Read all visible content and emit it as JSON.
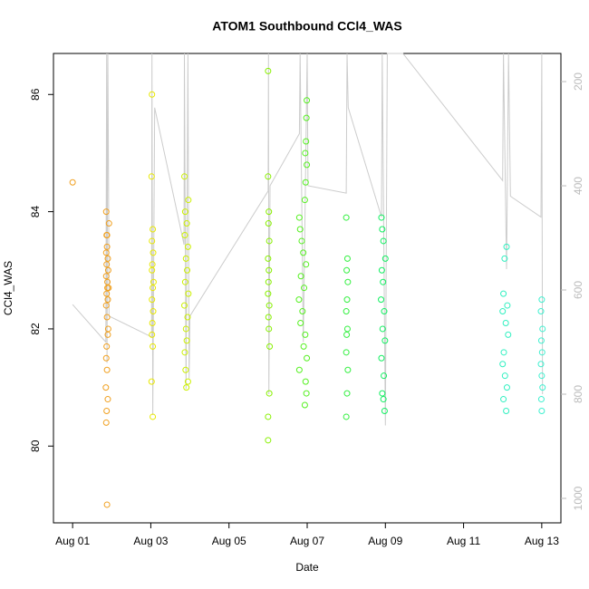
{
  "chart_data": {
    "type": "scatter",
    "title": "ATOM1 Southbound CCl4_WAS",
    "x_label": "Date",
    "y_label": "CCl4_WAS",
    "xlim": [
      0.51,
      13.49
    ],
    "xticks": [
      {
        "value": 1,
        "label": "Aug 01"
      },
      {
        "value": 3,
        "label": "Aug 03"
      },
      {
        "value": 5,
        "label": "Aug 05"
      },
      {
        "value": 7,
        "label": "Aug 07"
      },
      {
        "value": 9,
        "label": "Aug 09"
      },
      {
        "value": 11,
        "label": "Aug 11"
      },
      {
        "value": 13,
        "label": "Aug 13"
      }
    ],
    "ylim": [
      78.69,
      86.7
    ],
    "yticks": [
      80,
      82,
      84,
      86
    ],
    "y2lim": [
      1047,
      146
    ],
    "y2ticks": [
      200,
      400,
      600,
      800,
      1000
    ],
    "y2_color": "#bbbbbb",
    "series": [
      {
        "type": "line",
        "axis": "y2",
        "color": "#cccccc",
        "x": [
          1.0,
          1.85,
          1.87,
          1.88,
          1.9,
          1.92,
          1.93,
          3.02,
          3.03,
          3.05,
          3.1,
          3.85,
          3.86,
          3.9,
          3.95,
          3.98,
          4.0,
          6.0,
          6.01,
          6.02,
          6.05,
          6.8,
          6.82,
          6.9,
          7.0,
          7.02,
          8.0,
          8.02,
          8.05,
          8.9,
          8.92,
          9.0,
          9.05,
          9.45,
          12.0,
          12.02,
          12.1,
          12.15,
          12.2,
          12.98,
          13.0,
          13.02
        ],
        "values": [
          628,
          700,
          146,
          740,
          146,
          390,
          650,
          690,
          146,
          840,
          250,
          513,
          146,
          790,
          146,
          770,
          650,
          410,
          146,
          800,
          400,
          300,
          146,
          700,
          146,
          400,
          414,
          146,
          250,
          460,
          146,
          860,
          146,
          146,
          390,
          146,
          560,
          146,
          420,
          460,
          146,
          800
        ]
      },
      {
        "color": "#f0a020",
        "x": [
          1.0,
          1.86,
          1.87,
          1.88,
          1.88,
          1.86,
          1.9,
          1.87,
          1.91,
          1.86,
          1.89,
          1.92,
          1.87,
          1.9,
          1.86,
          1.88,
          1.91,
          1.9,
          1.87,
          1.86,
          1.88,
          1.85,
          1.9,
          1.87,
          1.86,
          1.88,
          1.93,
          1.89
        ],
        "values": [
          84.5,
          84.0,
          83.6,
          83.6,
          83.4,
          83.3,
          83.2,
          83.1,
          83.0,
          82.9,
          82.7,
          82.7,
          82.6,
          82.5,
          82.4,
          82.2,
          82.0,
          81.9,
          81.7,
          81.5,
          81.3,
          81.0,
          80.8,
          80.6,
          80.4,
          79.0,
          83.8,
          82.8
        ]
      },
      {
        "color": "#e8e800",
        "x": [
          3.03,
          3.02,
          3.05,
          3.03,
          3.06,
          3.04,
          3.03,
          3.07,
          3.05,
          3.03,
          3.06,
          3.04,
          3.03,
          3.05,
          3.02,
          3.05
        ],
        "values": [
          86.0,
          84.6,
          83.7,
          83.5,
          83.3,
          83.1,
          83.0,
          82.8,
          82.7,
          82.5,
          82.3,
          82.1,
          81.9,
          81.7,
          81.1,
          80.5
        ]
      },
      {
        "color": "#ccf000",
        "x": [
          3.86,
          3.96,
          3.88,
          3.92,
          3.87,
          3.95,
          3.9,
          3.93,
          3.88,
          3.96,
          3.86,
          3.94,
          3.9,
          3.92,
          3.87,
          3.89,
          3.95,
          3.91
        ],
        "values": [
          84.6,
          84.2,
          84.0,
          83.8,
          83.6,
          83.4,
          83.2,
          83.0,
          82.8,
          82.6,
          82.4,
          82.2,
          82.0,
          81.8,
          81.6,
          81.3,
          81.1,
          81.0
        ]
      },
      {
        "color": "#88f000",
        "x": [
          6.0,
          6.0,
          6.02,
          6.01,
          6.03,
          6.0,
          6.02,
          6.01,
          6.0,
          6.03,
          6.01,
          6.02,
          6.04,
          6.03,
          6.0,
          6.0
        ],
        "values": [
          86.4,
          84.6,
          84.0,
          83.8,
          83.5,
          83.2,
          83.0,
          82.8,
          82.6,
          82.4,
          82.2,
          82.0,
          81.7,
          80.9,
          80.5,
          80.1
        ]
      },
      {
        "color": "#55f020",
        "x": [
          6.99,
          6.98,
          6.97,
          6.95,
          6.99,
          6.96,
          6.94,
          6.8,
          6.82,
          6.86,
          6.9,
          6.97,
          6.84,
          6.92,
          6.79,
          6.88,
          6.83,
          6.95,
          6.91,
          6.99,
          6.8,
          6.96,
          6.98,
          6.94
        ],
        "values": [
          85.9,
          85.6,
          85.2,
          85.0,
          84.8,
          84.5,
          84.2,
          83.9,
          83.7,
          83.5,
          83.3,
          83.1,
          82.9,
          82.7,
          82.5,
          82.3,
          82.1,
          81.9,
          81.7,
          81.5,
          81.3,
          81.1,
          80.9,
          80.7
        ]
      },
      {
        "color": "#33f040",
        "x": [
          8.0,
          8.03,
          8.01,
          8.04,
          8.02,
          8.0,
          8.03,
          8.01,
          8.0,
          8.04,
          8.02,
          8.0
        ],
        "values": [
          83.9,
          83.2,
          83.0,
          82.8,
          82.5,
          82.3,
          82.0,
          81.9,
          81.6,
          81.3,
          80.9,
          80.5
        ]
      },
      {
        "color": "#10f060",
        "x": [
          8.9,
          8.92,
          8.95,
          9.0,
          8.91,
          8.94,
          8.89,
          8.97,
          8.93,
          8.99,
          8.9,
          8.96,
          8.92,
          8.95,
          8.98
        ],
        "values": [
          83.9,
          83.7,
          83.5,
          83.2,
          83.0,
          82.8,
          82.5,
          82.3,
          82.0,
          81.8,
          81.5,
          81.2,
          80.9,
          80.8,
          80.6
        ]
      },
      {
        "color": "#30f0c0",
        "x": [
          12.1,
          12.05,
          12.02,
          12.12,
          12.0,
          12.08,
          12.14,
          12.03,
          12.0,
          12.06,
          12.11,
          12.02,
          12.09
        ],
        "values": [
          83.4,
          83.2,
          82.6,
          82.4,
          82.3,
          82.1,
          81.9,
          81.6,
          81.4,
          81.2,
          81.0,
          80.8,
          80.6
        ]
      },
      {
        "color": "#40f0d0",
        "x": [
          13.0,
          12.98,
          13.02,
          12.99,
          13.01,
          12.98,
          13.0,
          13.02,
          12.99,
          13.0
        ],
        "values": [
          82.5,
          82.3,
          82.0,
          81.8,
          81.6,
          81.4,
          81.2,
          81.0,
          80.8,
          80.6
        ]
      }
    ]
  }
}
